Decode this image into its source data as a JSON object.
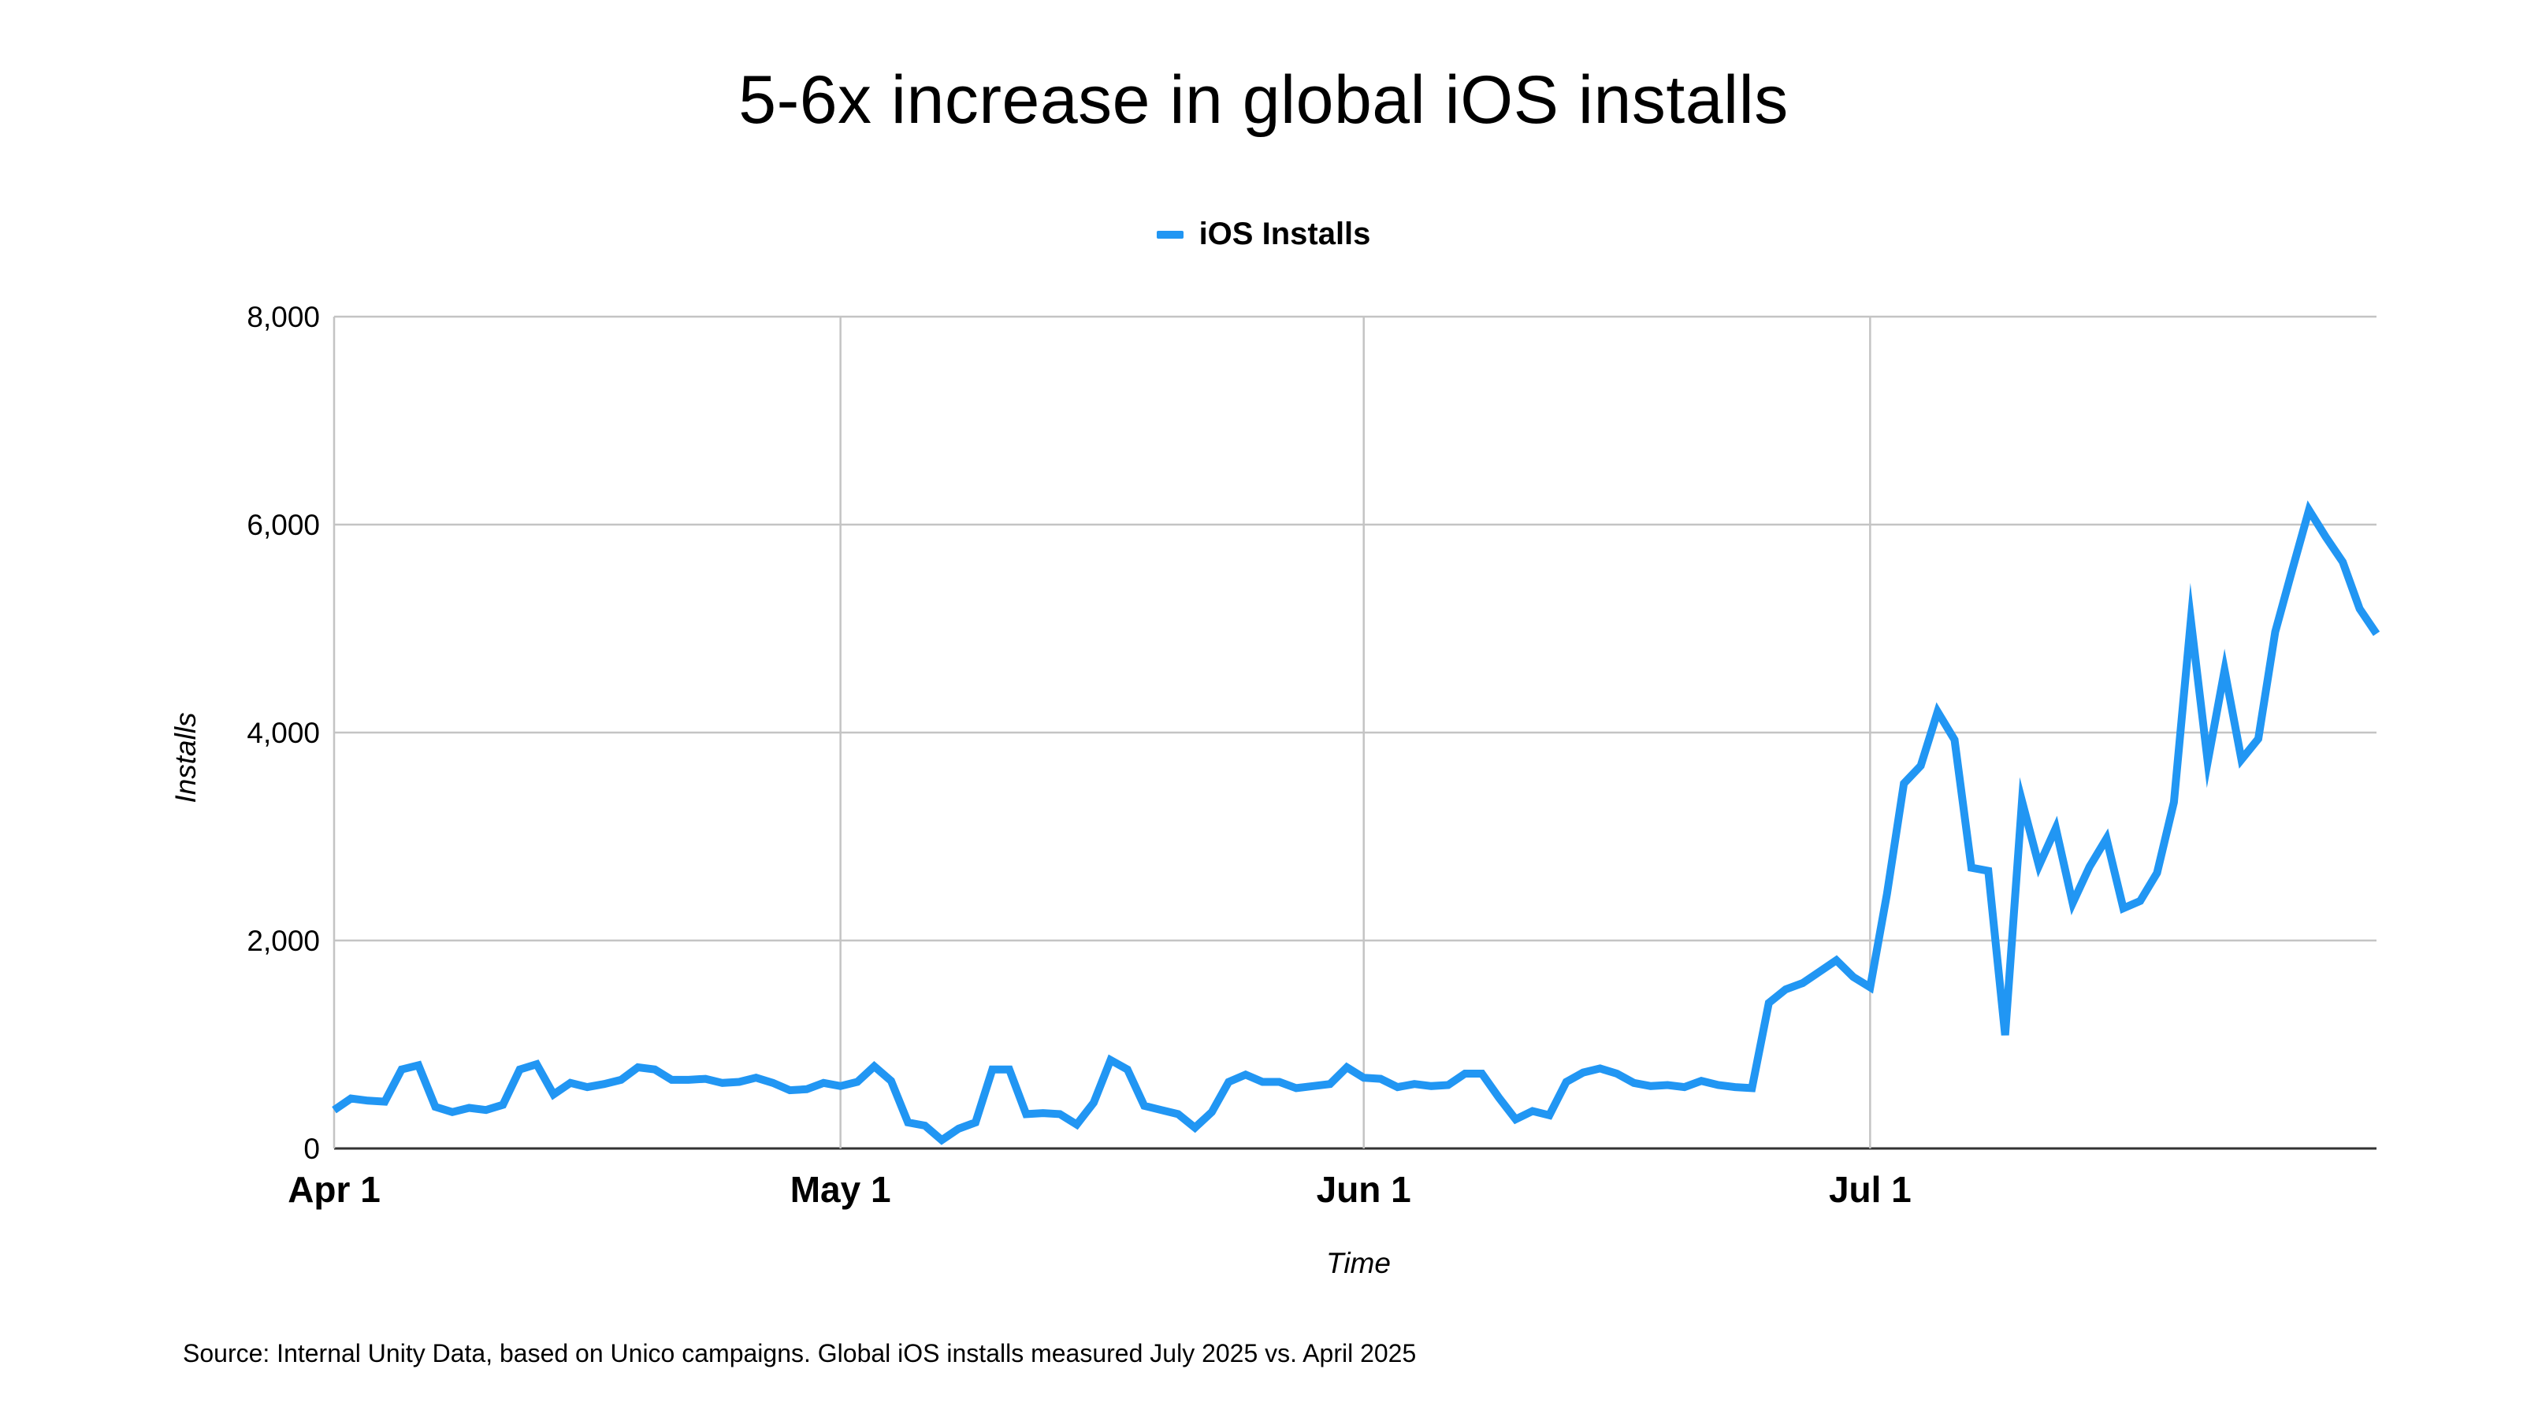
{
  "chart_data": {
    "type": "line",
    "title": "5-6x increase in global iOS installs",
    "xlabel": "Time",
    "ylabel": "Installs",
    "ylim": [
      0,
      8000
    ],
    "yticks": [
      "0",
      "2,000",
      "4,000",
      "6,000",
      "8,000"
    ],
    "xticks": [
      "Apr 1",
      "May 1",
      "Jun 1",
      "Jul 1"
    ],
    "xlim": [
      "2025-04-01",
      "2025-07-31"
    ],
    "grid": true,
    "legend_position": "top-center",
    "x": [
      "2025-04-01",
      "2025-04-02",
      "2025-04-03",
      "2025-04-04",
      "2025-04-05",
      "2025-04-06",
      "2025-04-07",
      "2025-04-08",
      "2025-04-09",
      "2025-04-10",
      "2025-04-11",
      "2025-04-12",
      "2025-04-13",
      "2025-04-14",
      "2025-04-15",
      "2025-04-16",
      "2025-04-17",
      "2025-04-18",
      "2025-04-19",
      "2025-04-20",
      "2025-04-21",
      "2025-04-22",
      "2025-04-23",
      "2025-04-24",
      "2025-04-25",
      "2025-04-26",
      "2025-04-27",
      "2025-04-28",
      "2025-04-29",
      "2025-04-30",
      "2025-05-01",
      "2025-05-02",
      "2025-05-03",
      "2025-05-04",
      "2025-05-05",
      "2025-05-06",
      "2025-05-07",
      "2025-05-08",
      "2025-05-09",
      "2025-05-10",
      "2025-05-11",
      "2025-05-12",
      "2025-05-13",
      "2025-05-14",
      "2025-05-15",
      "2025-05-16",
      "2025-05-17",
      "2025-05-18",
      "2025-05-19",
      "2025-05-20",
      "2025-05-21",
      "2025-05-22",
      "2025-05-23",
      "2025-05-24",
      "2025-05-25",
      "2025-05-26",
      "2025-05-27",
      "2025-05-28",
      "2025-05-29",
      "2025-05-30",
      "2025-05-31",
      "2025-06-01",
      "2025-06-02",
      "2025-06-03",
      "2025-06-04",
      "2025-06-05",
      "2025-06-06",
      "2025-06-07",
      "2025-06-08",
      "2025-06-09",
      "2025-06-10",
      "2025-06-11",
      "2025-06-12",
      "2025-06-13",
      "2025-06-14",
      "2025-06-15",
      "2025-06-16",
      "2025-06-17",
      "2025-06-18",
      "2025-06-19",
      "2025-06-20",
      "2025-06-21",
      "2025-06-22",
      "2025-06-23",
      "2025-06-24",
      "2025-06-25",
      "2025-06-26",
      "2025-06-27",
      "2025-06-28",
      "2025-06-29",
      "2025-06-30",
      "2025-07-01",
      "2025-07-02",
      "2025-07-03",
      "2025-07-04",
      "2025-07-05",
      "2025-07-06",
      "2025-07-07",
      "2025-07-08",
      "2025-07-09",
      "2025-07-10",
      "2025-07-11",
      "2025-07-12",
      "2025-07-13",
      "2025-07-14",
      "2025-07-15",
      "2025-07-16",
      "2025-07-17",
      "2025-07-18",
      "2025-07-19",
      "2025-07-20",
      "2025-07-21",
      "2025-07-22",
      "2025-07-23",
      "2025-07-24",
      "2025-07-25",
      "2025-07-26",
      "2025-07-27",
      "2025-07-28",
      "2025-07-29",
      "2025-07-30",
      "2025-07-31"
    ],
    "series": [
      {
        "name": "iOS Installs",
        "color": "#2196f3",
        "values": [
          370,
          480,
          460,
          450,
          760,
          800,
          400,
          350,
          390,
          370,
          420,
          760,
          810,
          520,
          630,
          590,
          620,
          660,
          780,
          760,
          660,
          660,
          670,
          630,
          640,
          680,
          630,
          560,
          570,
          630,
          600,
          640,
          790,
          650,
          250,
          220,
          80,
          190,
          250,
          760,
          760,
          330,
          340,
          330,
          230,
          440,
          850,
          760,
          410,
          370,
          330,
          200,
          350,
          640,
          710,
          640,
          640,
          580,
          600,
          620,
          780,
          680,
          670,
          590,
          620,
          600,
          610,
          720,
          720,
          490,
          280,
          360,
          320,
          640,
          730,
          770,
          720,
          630,
          600,
          610,
          590,
          650,
          610,
          590,
          580,
          1400,
          1530,
          1590,
          1700,
          1810,
          1650,
          1550,
          2450,
          3510,
          3680,
          4200,
          3930,
          2700,
          2670,
          1090,
          3340,
          2720,
          3080,
          2360,
          2710,
          2980,
          2310,
          2380,
          2650,
          3330,
          5080,
          3720,
          4600,
          3740,
          3940,
          4970,
          5560,
          6140,
          5880,
          5640,
          5190,
          4950
        ]
      }
    ]
  },
  "footer": {
    "source": "Source: Internal Unity Data, based on Unico campaigns. Global iOS installs measured July 2025 vs. April 2025"
  }
}
